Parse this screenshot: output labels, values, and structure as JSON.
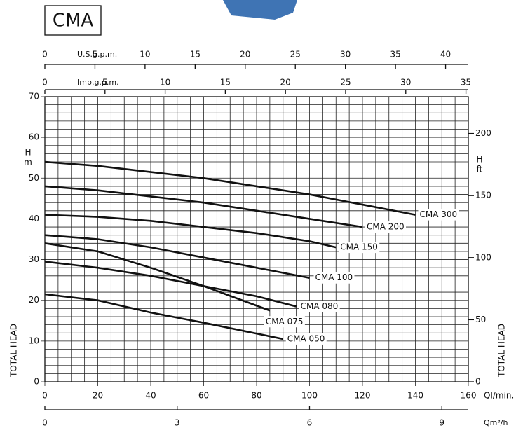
{
  "chart_data": {
    "type": "line",
    "title": "CMA",
    "xlabel": "Ql/min.",
    "ylabel": "TOTAL HEAD",
    "y_unit_label": [
      "H",
      "m"
    ],
    "y2label": "TOTAL HEAD",
    "y2_unit_label": [
      "H",
      "ft"
    ],
    "xlim": [
      0,
      160
    ],
    "xticks": [
      0,
      20,
      40,
      60,
      80,
      100,
      120,
      140,
      160
    ],
    "ylim": [
      0,
      70
    ],
    "yticks": [
      0,
      10,
      20,
      30,
      40,
      50,
      60,
      70
    ],
    "y2lim": [
      0,
      229.66
    ],
    "y2ticks": [
      0,
      50,
      100,
      150,
      200
    ],
    "grid": true,
    "secondary_x_axes": [
      {
        "label": "U.S.g.p.m.",
        "xlim": [
          0,
          42.27
        ],
        "xticks": [
          0,
          5,
          10,
          15,
          20,
          25,
          30,
          35,
          40
        ]
      },
      {
        "label": "Imp.g.p.m.",
        "xlim": [
          0,
          35.2
        ],
        "xticks": [
          0,
          5,
          10,
          15,
          20,
          25,
          30,
          35
        ]
      },
      {
        "label": "Qm³/h",
        "xlim": [
          0,
          9.6
        ],
        "xticks": [
          0,
          3,
          6,
          9
        ]
      }
    ],
    "series": [
      {
        "name": "CMA 300",
        "color": "#111111",
        "x": [
          0,
          20,
          40,
          60,
          80,
          100,
          120,
          140
        ],
        "values": [
          54,
          53,
          51.5,
          50,
          48,
          46,
          43.5,
          41
        ]
      },
      {
        "name": "CMA 200",
        "color": "#111111",
        "x": [
          0,
          20,
          40,
          60,
          80,
          100,
          120
        ],
        "values": [
          48,
          47,
          45.5,
          44,
          42,
          40,
          38
        ]
      },
      {
        "name": "CMA 150",
        "color": "#111111",
        "x": [
          0,
          20,
          40,
          60,
          80,
          100,
          110
        ],
        "values": [
          41,
          40.5,
          39.5,
          38,
          36.5,
          34.5,
          33
        ]
      },
      {
        "name": "CMA 100",
        "color": "#111111",
        "x": [
          0,
          20,
          40,
          60,
          80,
          100
        ],
        "values": [
          36,
          35,
          33,
          30.5,
          28,
          25.5
        ]
      },
      {
        "name": "CMA 080",
        "color": "#111111",
        "x": [
          0,
          20,
          40,
          60,
          80,
          95
        ],
        "values": [
          29.5,
          28,
          26,
          23.5,
          21,
          18.5
        ]
      },
      {
        "name": "CMA 075",
        "color": "#111111",
        "x": [
          0,
          20,
          40,
          60,
          85
        ],
        "values": [
          34,
          32,
          28,
          23.5,
          17.5
        ]
      },
      {
        "name": "CMA 050",
        "color": "#111111",
        "x": [
          0,
          20,
          40,
          60,
          90
        ],
        "values": [
          21.5,
          20,
          17,
          14.5,
          10.5
        ]
      }
    ]
  }
}
